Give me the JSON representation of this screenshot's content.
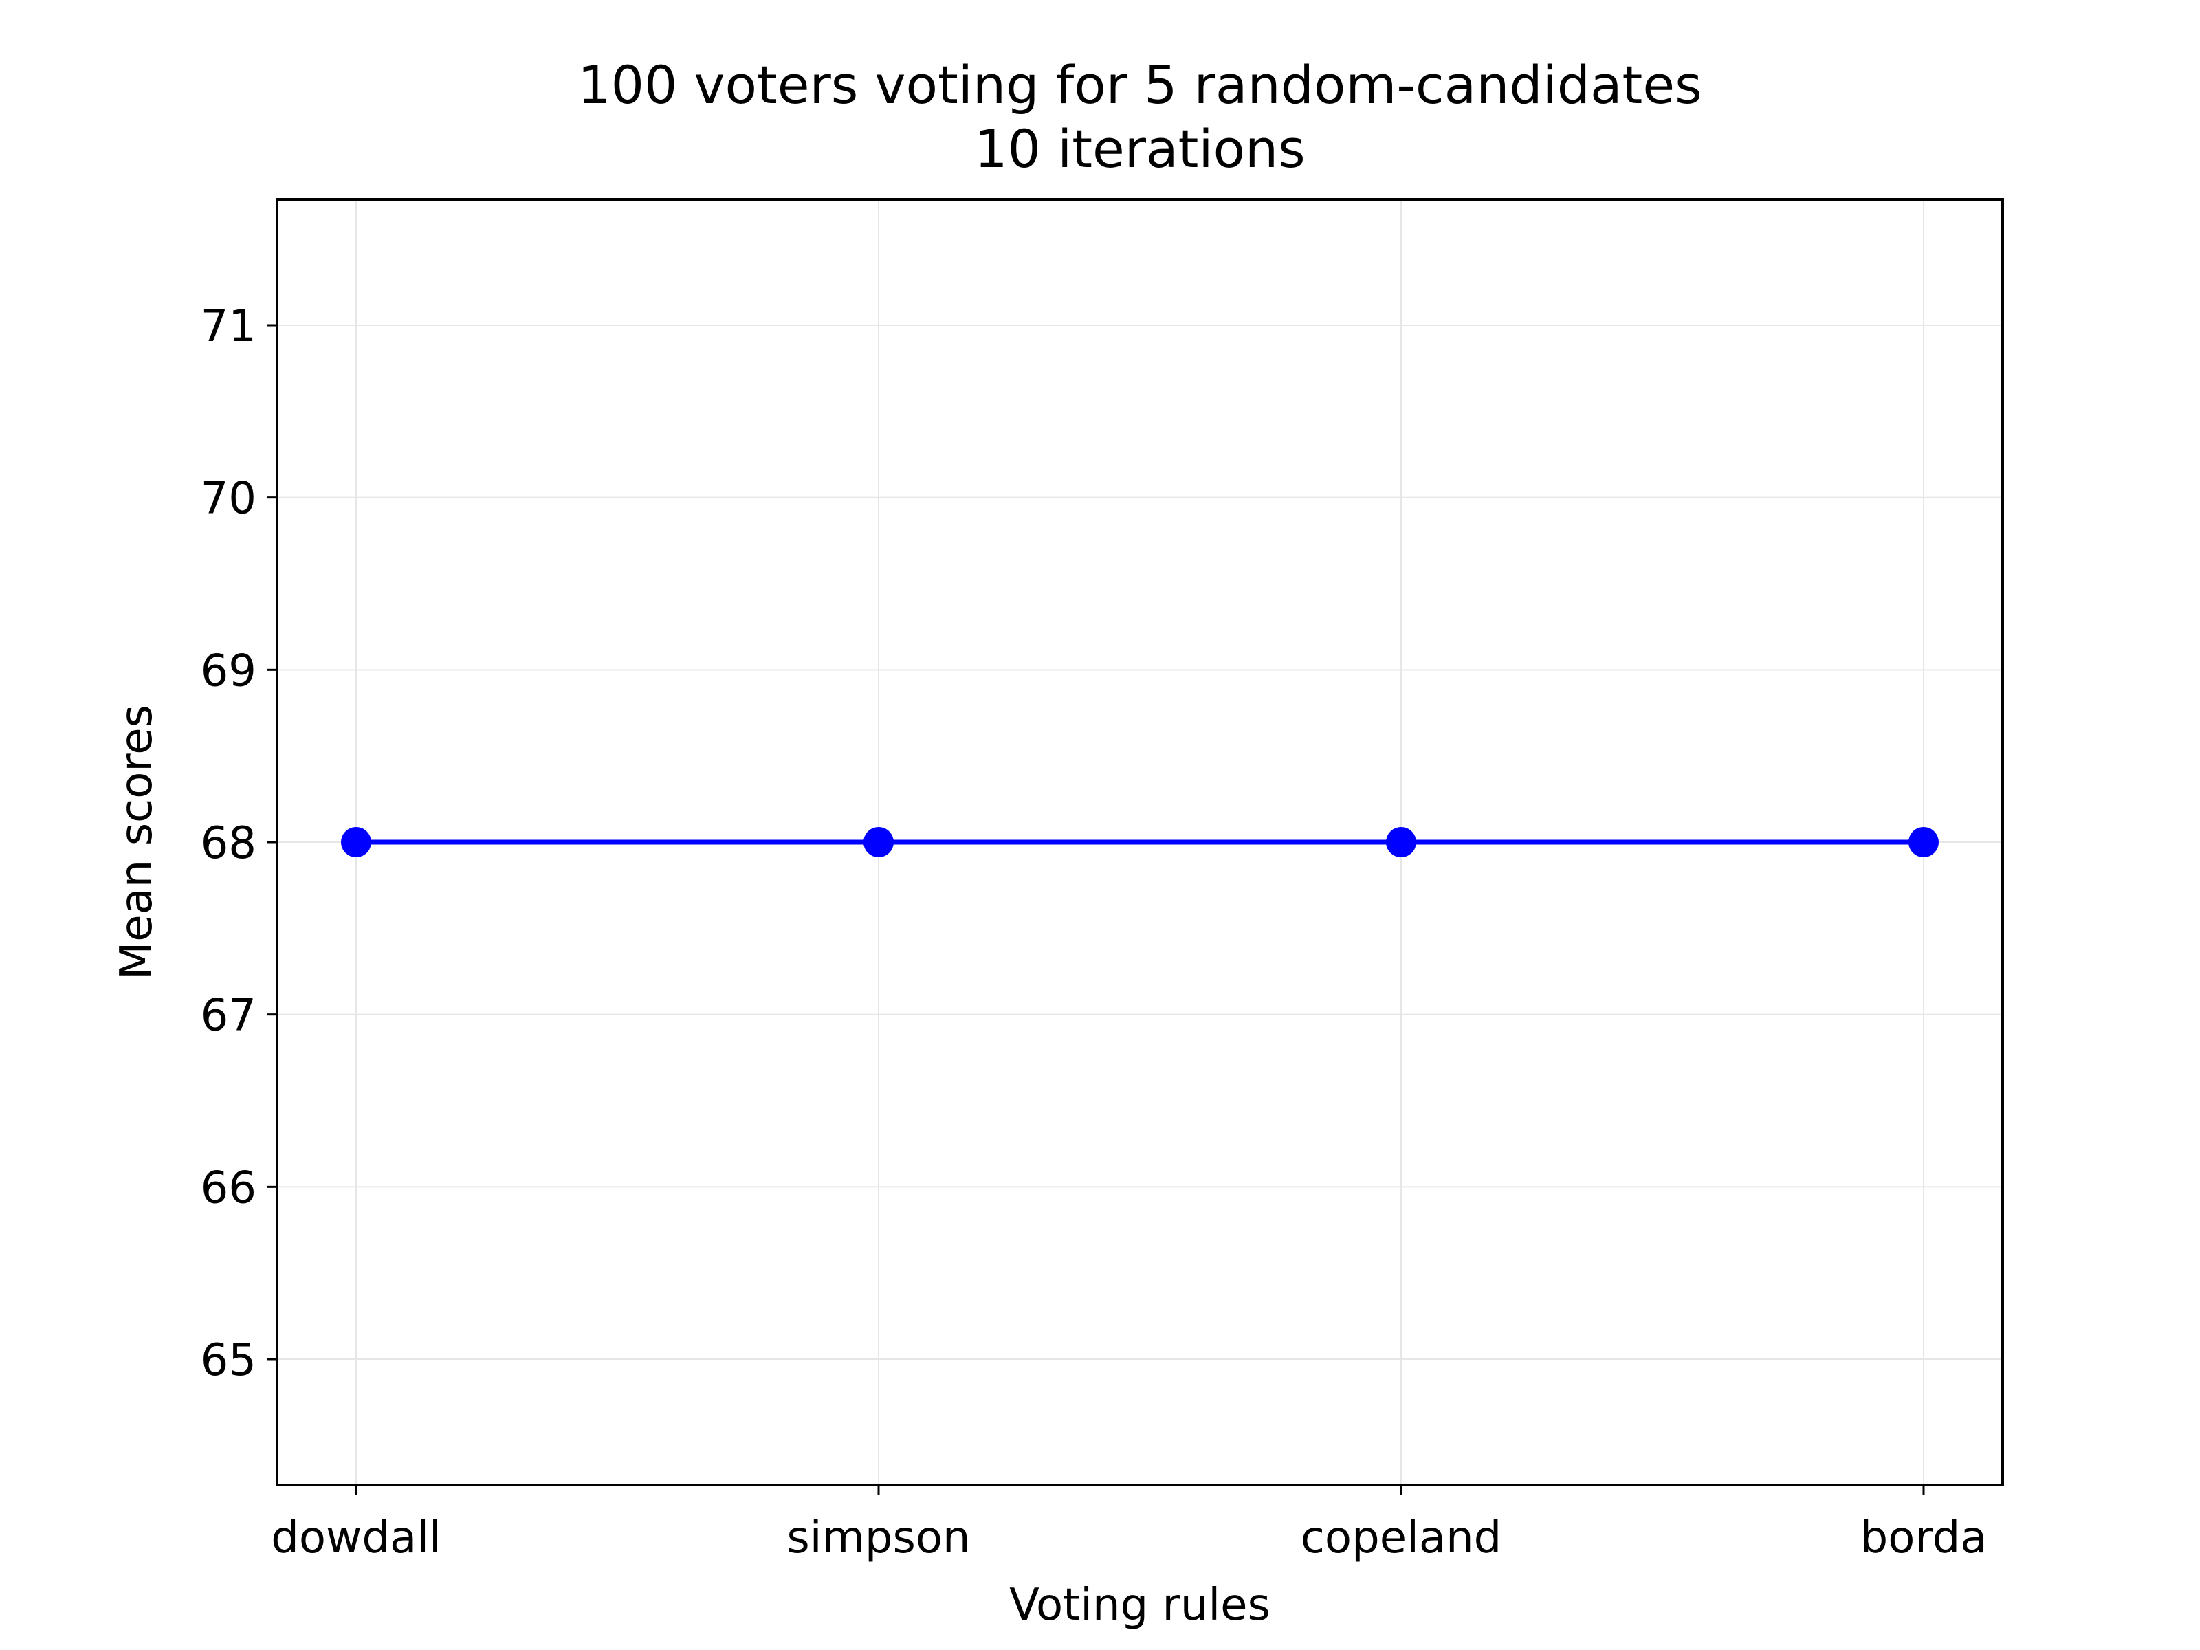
{
  "chart_data": {
    "type": "line",
    "title": "100 voters voting for 5 random-candidates",
    "subtitle": "10 iterations",
    "xlabel": "Voting rules",
    "ylabel": "Mean scores",
    "categories": [
      "dowdall",
      "simpson",
      "copeland",
      "borda"
    ],
    "series": [
      {
        "values": [
          68,
          68,
          68,
          68
        ],
        "color": "#0000ff",
        "marker": "circle"
      }
    ],
    "ylim": [
      64.27,
      71.73
    ],
    "yticks": [
      65,
      66,
      67,
      68,
      69,
      70,
      71
    ],
    "grid": true,
    "legend": "none"
  }
}
